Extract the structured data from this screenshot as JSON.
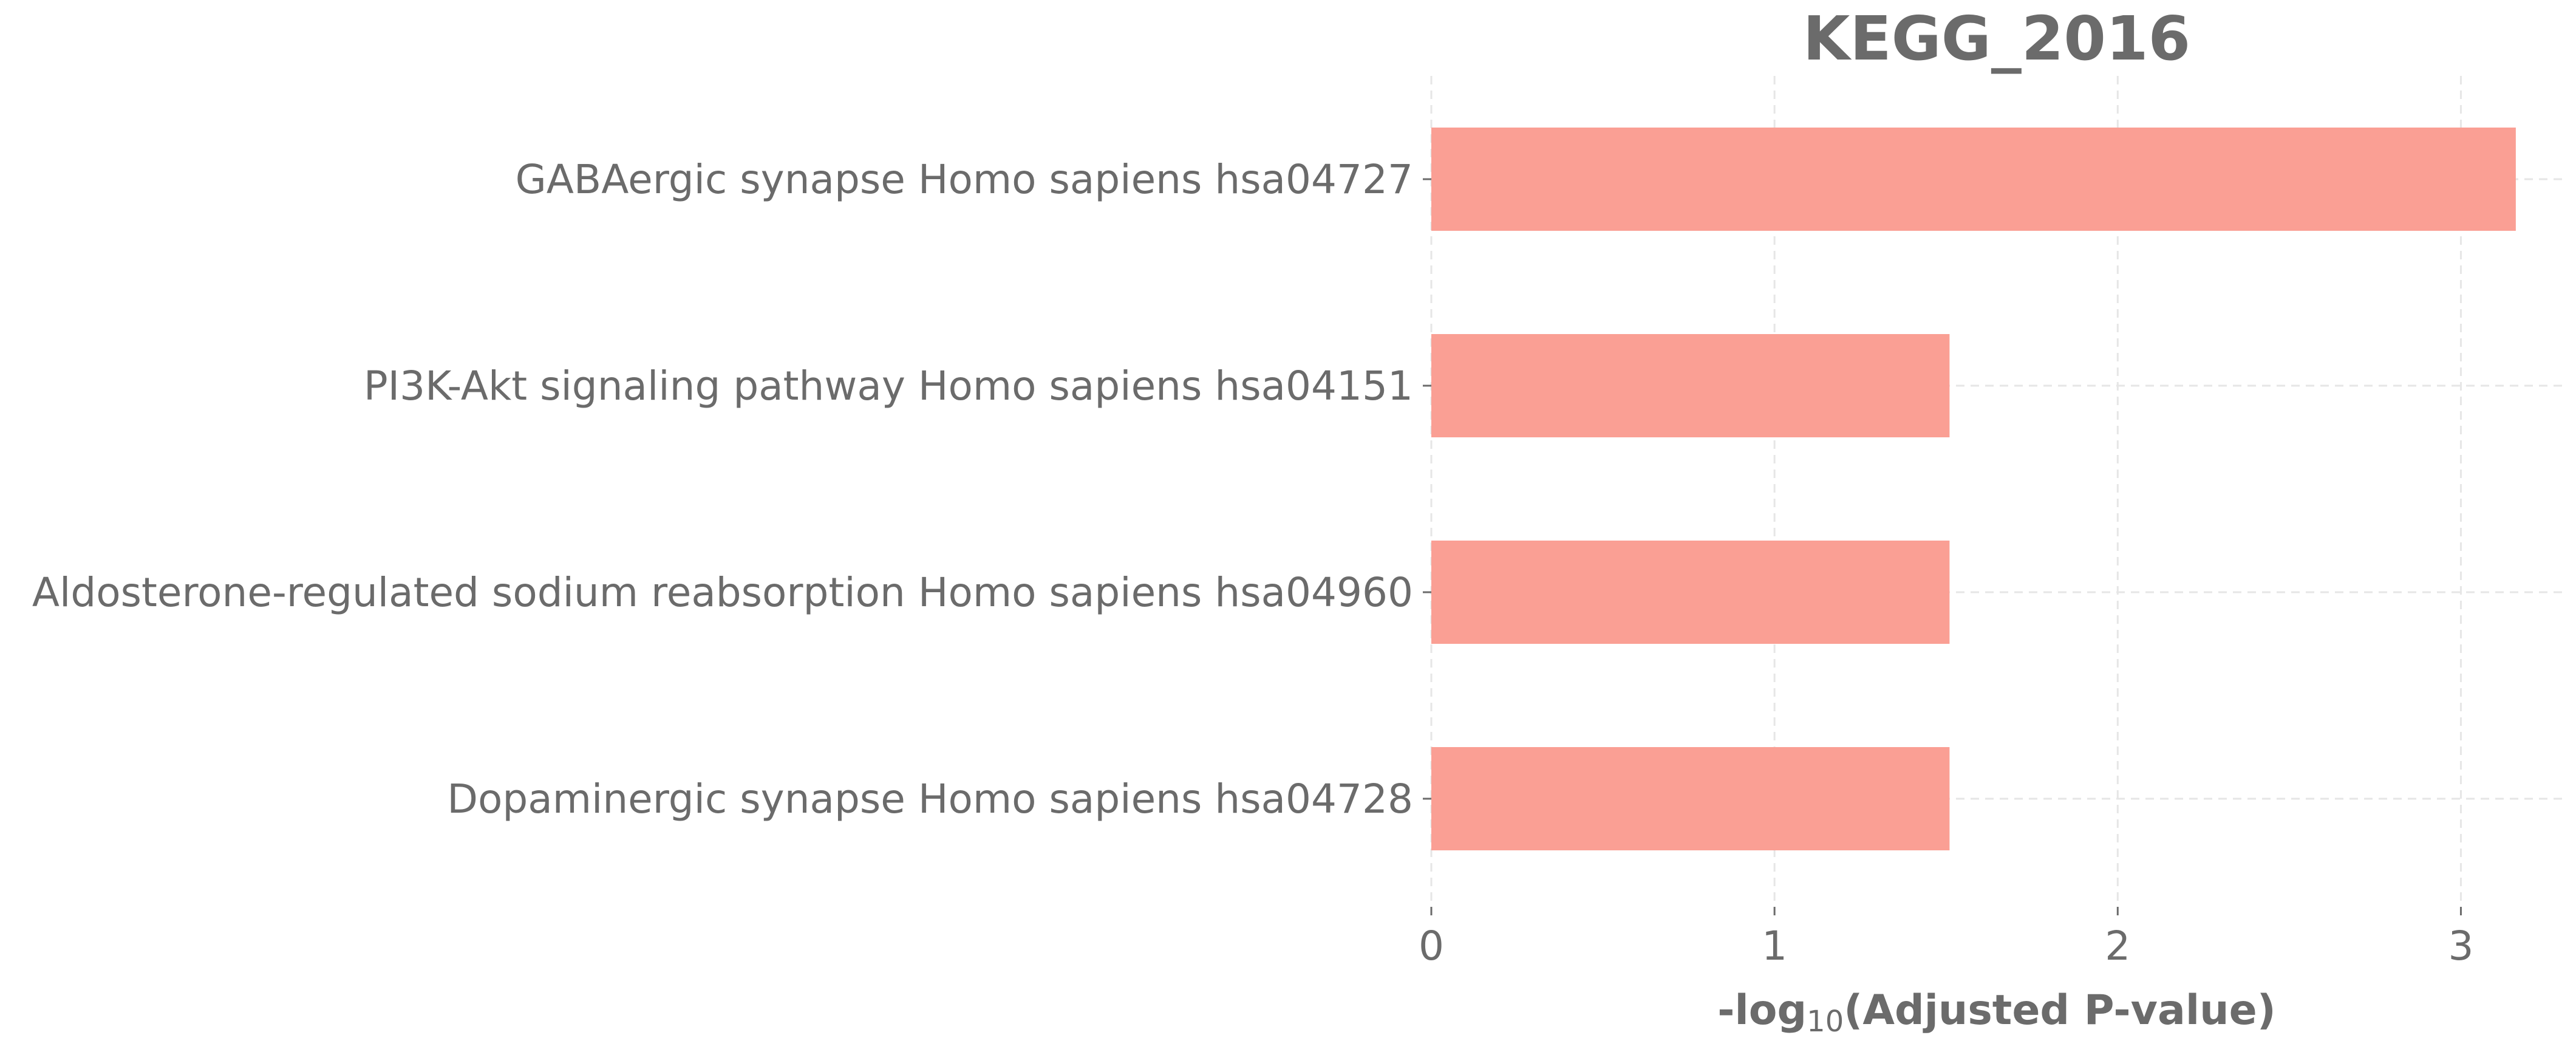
{
  "chart_data": {
    "type": "bar",
    "orientation": "horizontal",
    "title": "KEGG_2016",
    "xlabel_prefix": "-log",
    "xlabel_subscript": "10",
    "xlabel_suffix": "(Adjusted P-value)",
    "ylabel": "",
    "categories": [
      "GABAergic synapse Homo sapiens hsa04727",
      "PI3K-Akt signaling pathway Homo sapiens hsa04151",
      "Aldosterone-regulated sodium reabsorption Homo sapiens hsa04960",
      "Dopaminergic synapse Homo sapiens hsa04728"
    ],
    "values": [
      3.16,
      1.51,
      1.51,
      1.51
    ],
    "xlim": [
      0,
      3.3
    ],
    "xticks": [
      "0",
      "1",
      "2",
      "3"
    ],
    "grid": true,
    "colors": {
      "bar": "#fa9f94",
      "text": "#6b6b6b",
      "grid": "#e6e6e6"
    }
  }
}
